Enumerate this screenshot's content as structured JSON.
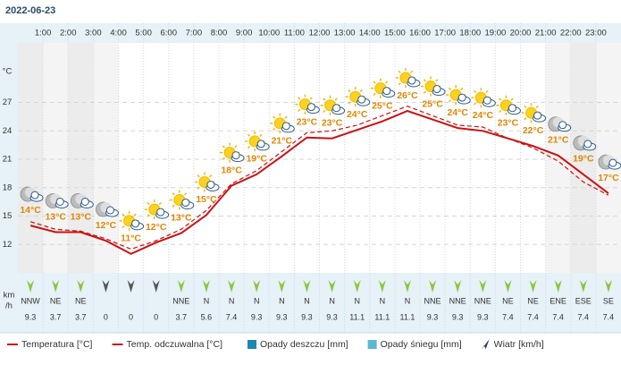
{
  "chart_data": {
    "type": "line",
    "title": "2022-06-23",
    "hour_ticks": [
      "1:00",
      "2:00",
      "3:00",
      "4:00",
      "5:00",
      "6:00",
      "7:00",
      "8:00",
      "9:00",
      "10:00",
      "11:00",
      "12:00",
      "13:00",
      "14:00",
      "15:00",
      "16:00",
      "17:00",
      "18:00",
      "19:00",
      "20:00",
      "21:00",
      "22:00",
      "23:00"
    ],
    "y_label": "°C",
    "ylim": [
      9,
      33
    ],
    "yticks": [
      12,
      15,
      18,
      21,
      24,
      27
    ],
    "grid": true,
    "series": [
      {
        "name": "Temperatura [°C]",
        "color": "#cc1010",
        "dash": false,
        "values": [
          14.0,
          13.3,
          13.3,
          12.4,
          11.0,
          12.2,
          13.2,
          15.1,
          18.2,
          19.4,
          21.3,
          23.3,
          23.2,
          24.1,
          25.0,
          26.1,
          25.2,
          24.3,
          24.0,
          23.2,
          22.4,
          21.4,
          19.4,
          17.4
        ],
        "value_labels": [
          "14°C",
          "13°C",
          "13°C",
          "12°C",
          "11°C",
          "12°C",
          "13°C",
          "15°C",
          "18°C",
          "19°C",
          "21°C",
          "23°C",
          "23°C",
          "24°C",
          "25°C",
          "26°C",
          "25°C",
          "24°C",
          "24°C",
          "23°C",
          "22°C",
          "21°C",
          "19°C",
          "17°C"
        ]
      },
      {
        "name": "Temp. odczuwalna [°C]",
        "color": "#cc1010",
        "dash": true,
        "values": [
          14.4,
          13.6,
          13.4,
          12.6,
          11.5,
          12.4,
          13.6,
          15.6,
          18.4,
          19.8,
          21.8,
          23.8,
          24.0,
          24.6,
          25.6,
          26.6,
          25.6,
          24.6,
          24.4,
          23.2,
          22.2,
          20.8,
          18.6,
          17.2
        ]
      }
    ],
    "legend_extra": [
      {
        "name": "Opady deszczu [mm]",
        "color": "#1a88b0",
        "shape": "square"
      },
      {
        "name": "Opady śniegu [mm]",
        "color": "#5ab8d2",
        "shape": "square"
      },
      {
        "name": "Wiatr [km/h]",
        "color": "#1f3a5a",
        "shape": "arrow"
      }
    ],
    "wind": {
      "unit": [
        "km",
        "/h"
      ],
      "directions": [
        "NNW",
        "NE",
        "NE",
        "",
        "",
        "",
        "NNE",
        "N",
        "N",
        "N",
        "N",
        "N",
        "N",
        "N",
        "N",
        "N",
        "NNE",
        "NNE",
        "NNE",
        "NE",
        "NE",
        "ENE",
        "ESE",
        "SE"
      ],
      "speeds": [
        9.3,
        3.7,
        3.7,
        0,
        0,
        0,
        3.7,
        5.6,
        7.4,
        9.3,
        9.3,
        9.3,
        9.3,
        11.1,
        11.1,
        11.1,
        9.3,
        9.3,
        9.3,
        7.4,
        7.4,
        7.4,
        7.4,
        7.4
      ]
    }
  }
}
